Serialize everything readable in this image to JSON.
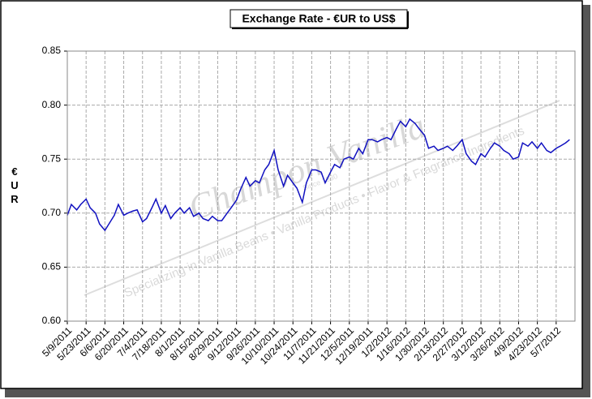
{
  "chart_data": {
    "type": "line",
    "title": "Exchange Rate - €UR to US$",
    "y_label": "€UR",
    "watermark": {
      "brand": "Champon Vanilla",
      "since": "Since 1930",
      "tagline": "Specializing in Vanilla Beans • Vanilla Products • Flavor & Fragrance Ingredients"
    },
    "x": [
      "5/9/2011",
      "5/12/2011",
      "5/16/2011",
      "5/19/2011",
      "5/23/2011",
      "5/26/2011",
      "5/30/2011",
      "6/2/2011",
      "6/6/2011",
      "6/9/2011",
      "6/13/2011",
      "6/16/2011",
      "6/20/2011",
      "6/23/2011",
      "6/27/2011",
      "6/30/2011",
      "7/4/2011",
      "7/7/2011",
      "7/11/2011",
      "7/14/2011",
      "7/18/2011",
      "7/21/2011",
      "7/25/2011",
      "7/28/2011",
      "8/1/2011",
      "8/4/2011",
      "8/8/2011",
      "8/11/2011",
      "8/15/2011",
      "8/18/2011",
      "8/22/2011",
      "8/25/2011",
      "8/29/2011",
      "9/1/2011",
      "9/5/2011",
      "9/8/2011",
      "9/12/2011",
      "9/15/2011",
      "9/19/2011",
      "9/22/2011",
      "9/26/2011",
      "9/29/2011",
      "10/3/2011",
      "10/6/2011",
      "10/10/2011",
      "10/13/2011",
      "10/17/2011",
      "10/20/2011",
      "10/24/2011",
      "10/27/2011",
      "10/31/2011",
      "11/3/2011",
      "11/7/2011",
      "11/10/2011",
      "11/14/2011",
      "11/17/2011",
      "11/21/2011",
      "11/24/2011",
      "11/28/2011",
      "12/1/2011",
      "12/5/2011",
      "12/8/2011",
      "12/12/2011",
      "12/15/2011",
      "12/19/2011",
      "12/22/2011",
      "12/26/2011",
      "12/29/2011",
      "1/2/2012",
      "1/5/2012",
      "1/9/2012",
      "1/12/2012",
      "1/16/2012",
      "1/19/2012",
      "1/23/2012",
      "1/26/2012",
      "1/30/2012",
      "2/2/2012",
      "2/6/2012",
      "2/9/2012",
      "2/13/2012",
      "2/16/2012",
      "2/20/2012",
      "2/23/2012",
      "2/27/2012",
      "3/1/2012",
      "3/5/2012",
      "3/8/2012",
      "3/12/2012",
      "3/15/2012",
      "3/19/2012",
      "3/22/2012",
      "3/26/2012",
      "3/29/2012",
      "4/2/2012",
      "4/5/2012",
      "4/9/2012",
      "4/12/2012",
      "4/16/2012",
      "4/19/2012",
      "4/23/2012",
      "4/26/2012",
      "4/30/2012",
      "5/3/2012",
      "5/7/2012",
      "5/10/2012",
      "5/14/2012",
      "5/17/2012"
    ],
    "series": [
      {
        "name": "€UR to US$",
        "color": "#1010c0",
        "values": [
          0.698,
          0.708,
          0.703,
          0.708,
          0.713,
          0.705,
          0.7,
          0.69,
          0.684,
          0.69,
          0.698,
          0.708,
          0.698,
          0.7,
          0.702,
          0.703,
          0.692,
          0.695,
          0.705,
          0.713,
          0.7,
          0.707,
          0.695,
          0.7,
          0.705,
          0.7,
          0.705,
          0.697,
          0.7,
          0.695,
          0.693,
          0.697,
          0.693,
          0.693,
          0.7,
          0.705,
          0.712,
          0.722,
          0.733,
          0.725,
          0.73,
          0.728,
          0.74,
          0.745,
          0.758,
          0.74,
          0.725,
          0.735,
          0.728,
          0.723,
          0.71,
          0.728,
          0.74,
          0.74,
          0.738,
          0.728,
          0.738,
          0.745,
          0.742,
          0.75,
          0.752,
          0.75,
          0.76,
          0.755,
          0.768,
          0.768,
          0.766,
          0.768,
          0.77,
          0.768,
          0.778,
          0.785,
          0.78,
          0.787,
          0.783,
          0.778,
          0.772,
          0.76,
          0.762,
          0.758,
          0.76,
          0.762,
          0.758,
          0.762,
          0.768,
          0.755,
          0.748,
          0.745,
          0.755,
          0.752,
          0.76,
          0.765,
          0.762,
          0.758,
          0.755,
          0.75,
          0.752,
          0.765,
          0.762,
          0.766,
          0.76,
          0.765,
          0.758,
          0.756,
          0.76,
          0.762,
          0.765,
          0.768
        ]
      }
    ],
    "xlim": [
      "5/9/2011",
      "5/21/2012"
    ],
    "xticks": [
      "5/9/2011",
      "5/23/2011",
      "6/6/2011",
      "6/20/2011",
      "7/4/2011",
      "7/18/2011",
      "8/1/2011",
      "8/15/2011",
      "8/29/2011",
      "9/12/2011",
      "9/26/2011",
      "10/10/2011",
      "10/24/2011",
      "11/7/2011",
      "11/21/2011",
      "12/5/2011",
      "12/19/2011",
      "1/2/2012",
      "1/16/2012",
      "1/30/2012",
      "2/13/2012",
      "2/27/2012",
      "3/12/2012",
      "3/26/2012",
      "4/9/2012",
      "4/23/2012",
      "5/7/2012"
    ],
    "ylim": [
      0.6,
      0.85
    ],
    "yticks": [
      {
        "value": 0.6,
        "label": "0.60"
      },
      {
        "value": 0.65,
        "label": "0.65"
      },
      {
        "value": 0.7,
        "label": "0.70"
      },
      {
        "value": 0.75,
        "label": "0.75"
      },
      {
        "value": 0.8,
        "label": "0.80"
      },
      {
        "value": 0.85,
        "label": "0.85"
      }
    ],
    "grid": true
  }
}
